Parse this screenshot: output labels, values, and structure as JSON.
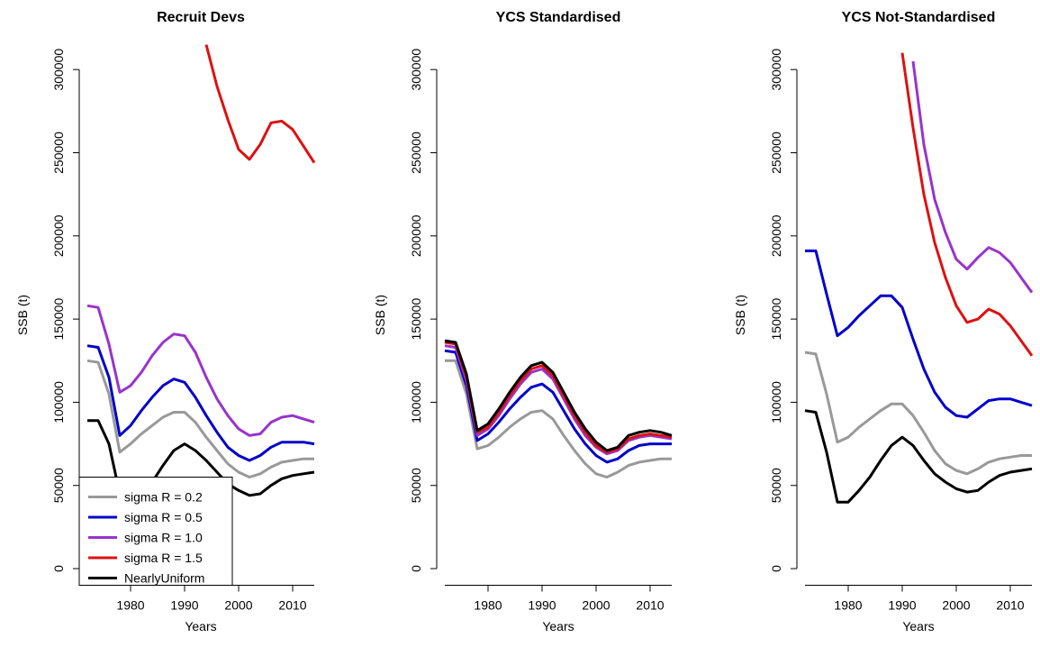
{
  "chart_data": [
    {
      "type": "line",
      "title": "Recruit Devs",
      "x_label": "Years",
      "y_label": "SSB (t)",
      "x": [
        1972,
        1974,
        1976,
        1978,
        1980,
        1982,
        1984,
        1986,
        1988,
        1990,
        1992,
        1994,
        1996,
        1998,
        2000,
        2002,
        2004,
        2006,
        2008,
        2010,
        2012,
        2014
      ],
      "xlim": [
        1970.5,
        2015.5
      ],
      "ylim": [
        -10000,
        315000
      ],
      "xticks": [
        1980,
        1990,
        2000,
        2010
      ],
      "yticks": [
        0,
        50000,
        100000,
        150000,
        200000,
        250000,
        300000
      ],
      "legend": "bottom-left",
      "series": [
        {
          "name": "sigma R = 0.2",
          "color": "#999999",
          "values": [
            125000,
            124000,
            105000,
            70000,
            75000,
            81000,
            86000,
            91000,
            94000,
            94000,
            88000,
            79000,
            71000,
            63000,
            58000,
            55000,
            57000,
            61000,
            64000,
            65000,
            66000,
            66000
          ]
        },
        {
          "name": "sigma R = 0.5",
          "color": "#0000cc",
          "values": [
            134000,
            133000,
            115000,
            80000,
            86000,
            95000,
            103000,
            110000,
            114000,
            112000,
            103000,
            92000,
            82000,
            73000,
            68000,
            65000,
            68000,
            73000,
            76000,
            76000,
            76000,
            75000
          ]
        },
        {
          "name": "sigma R = 1.0",
          "color": "#9933cc",
          "values": [
            158000,
            157000,
            135000,
            106000,
            110000,
            118000,
            128000,
            136000,
            141000,
            140000,
            130000,
            115000,
            102000,
            92000,
            84000,
            80000,
            81000,
            88000,
            91000,
            92000,
            90000,
            88000
          ]
        },
        {
          "name": "sigma R = 1.5",
          "color": "#dd1111",
          "values": [
            null,
            null,
            null,
            null,
            null,
            null,
            null,
            null,
            null,
            null,
            null,
            315000,
            290000,
            270000,
            252000,
            246000,
            255000,
            268000,
            269000,
            264000,
            254000,
            244000
          ]
        },
        {
          "name": "NearlyUniform",
          "color": "#000000",
          "values": [
            89000,
            89000,
            75000,
            45000,
            40000,
            45000,
            52000,
            62000,
            71000,
            75000,
            71000,
            65000,
            58000,
            51000,
            47000,
            44000,
            45000,
            50000,
            54000,
            56000,
            57000,
            58000
          ]
        }
      ]
    },
    {
      "type": "line",
      "title": "YCS Standardised",
      "x_label": "Years",
      "y_label": "SSB (t)",
      "x": [
        1972,
        1974,
        1976,
        1978,
        1980,
        1982,
        1984,
        1986,
        1988,
        1990,
        1992,
        1994,
        1996,
        1998,
        2000,
        2002,
        2004,
        2006,
        2008,
        2010,
        2012,
        2014
      ],
      "xlim": [
        1970.5,
        2015.5
      ],
      "ylim": [
        -10000,
        315000
      ],
      "xticks": [
        1980,
        1990,
        2000,
        2010
      ],
      "yticks": [
        0,
        50000,
        100000,
        150000,
        200000,
        250000,
        300000
      ],
      "series": [
        {
          "color": "#999999",
          "values": [
            125000,
            125000,
            105000,
            72000,
            74000,
            79000,
            85000,
            90000,
            94000,
            95000,
            90000,
            80000,
            71000,
            63000,
            57000,
            55000,
            58000,
            62000,
            64000,
            65000,
            66000,
            66000
          ]
        },
        {
          "color": "#0000cc",
          "values": [
            131000,
            130000,
            110000,
            77000,
            81000,
            88000,
            96000,
            103000,
            109000,
            111000,
            106000,
            95000,
            84000,
            75000,
            68000,
            64000,
            66000,
            71000,
            74000,
            75000,
            75000,
            75000
          ]
        },
        {
          "color": "#9933cc",
          "values": [
            134000,
            133000,
            113000,
            80000,
            84000,
            92000,
            102000,
            111000,
            118000,
            120000,
            114000,
            102000,
            90000,
            80000,
            73000,
            69000,
            71000,
            77000,
            79000,
            80000,
            79000,
            78000
          ]
        },
        {
          "color": "#dd1111",
          "values": [
            136000,
            135000,
            115000,
            82000,
            85000,
            94000,
            104000,
            113000,
            120000,
            122000,
            116000,
            104000,
            92000,
            82000,
            74000,
            70000,
            72000,
            78000,
            80000,
            81000,
            80000,
            79000
          ]
        },
        {
          "color": "#000000",
          "values": [
            137000,
            136000,
            117000,
            83000,
            87000,
            96000,
            106000,
            115000,
            122000,
            124000,
            118000,
            106000,
            94000,
            84000,
            76000,
            71000,
            73000,
            80000,
            82000,
            83000,
            82000,
            80000
          ]
        }
      ]
    },
    {
      "type": "line",
      "title": "YCS Not-Standardised",
      "x_label": "Years",
      "y_label": "SSB (t)",
      "x": [
        1972,
        1974,
        1976,
        1978,
        1980,
        1982,
        1984,
        1986,
        1988,
        1990,
        1992,
        1994,
        1996,
        1998,
        2000,
        2002,
        2004,
        2006,
        2008,
        2010,
        2012,
        2014
      ],
      "xlim": [
        1970.5,
        2015.5
      ],
      "ylim": [
        -10000,
        315000
      ],
      "xticks": [
        1980,
        1990,
        2000,
        2010
      ],
      "yticks": [
        0,
        50000,
        100000,
        150000,
        200000,
        250000,
        300000
      ],
      "series": [
        {
          "color": "#999999",
          "values": [
            130000,
            129000,
            105000,
            76000,
            79000,
            85000,
            90000,
            95000,
            99000,
            99000,
            92000,
            82000,
            71000,
            63000,
            59000,
            57000,
            60000,
            64000,
            66000,
            67000,
            68000,
            68000
          ]
        },
        {
          "color": "#0000cc",
          "values": [
            191000,
            191000,
            165000,
            140000,
            145000,
            152000,
            158000,
            164000,
            164000,
            157000,
            138000,
            120000,
            106000,
            97000,
            92000,
            91000,
            96000,
            101000,
            102000,
            102000,
            100000,
            98000
          ]
        },
        {
          "color": "#9933cc",
          "values": [
            null,
            null,
            null,
            null,
            null,
            null,
            null,
            null,
            null,
            null,
            305000,
            255000,
            222000,
            202000,
            186000,
            180000,
            187000,
            193000,
            190000,
            184000,
            175000,
            166000
          ]
        },
        {
          "color": "#dd1111",
          "values": [
            null,
            null,
            null,
            null,
            null,
            null,
            null,
            null,
            null,
            310000,
            265000,
            225000,
            196000,
            175000,
            158000,
            148000,
            150000,
            156000,
            153000,
            146000,
            137000,
            128000
          ]
        },
        {
          "color": "#000000",
          "values": [
            95000,
            94000,
            70000,
            40000,
            40000,
            47000,
            55000,
            65000,
            74000,
            79000,
            74000,
            65000,
            57000,
            52000,
            48000,
            46000,
            47000,
            52000,
            56000,
            58000,
            59000,
            60000
          ]
        }
      ]
    }
  ]
}
